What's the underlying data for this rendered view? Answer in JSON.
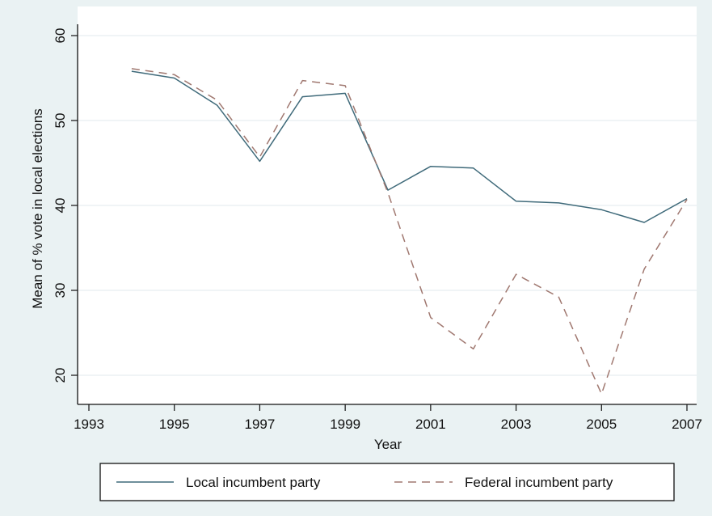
{
  "chart_data": {
    "type": "line",
    "title": "",
    "xlabel": "Year",
    "ylabel": "Mean of % vote in local elections",
    "xlim": [
      1993,
      2007
    ],
    "ylim": [
      17,
      60
    ],
    "x_ticks": [
      1993,
      1995,
      1997,
      1999,
      2001,
      2003,
      2005,
      2007
    ],
    "y_ticks": [
      20,
      30,
      40,
      50,
      60
    ],
    "grid": "horizontal",
    "legend_position": "bottom",
    "x": [
      1994,
      1995,
      1996,
      1997,
      1998,
      1999,
      2000,
      2001,
      2002,
      2003,
      2004,
      2005,
      2006,
      2007
    ],
    "series": [
      {
        "name": "Local incumbent party",
        "style": "solid",
        "color": "#3f6a7a",
        "values": [
          55.8,
          55.0,
          51.8,
          45.2,
          52.8,
          53.2,
          41.8,
          44.6,
          44.4,
          40.5,
          40.3,
          39.5,
          38.0,
          40.8
        ]
      },
      {
        "name": "Federal incumbent party",
        "style": "dashed",
        "color": "#a07870",
        "values": [
          56.1,
          55.4,
          52.4,
          45.7,
          54.7,
          54.1,
          41.5,
          26.8,
          23.1,
          31.9,
          29.2,
          17.8,
          32.5,
          40.7
        ]
      }
    ]
  }
}
